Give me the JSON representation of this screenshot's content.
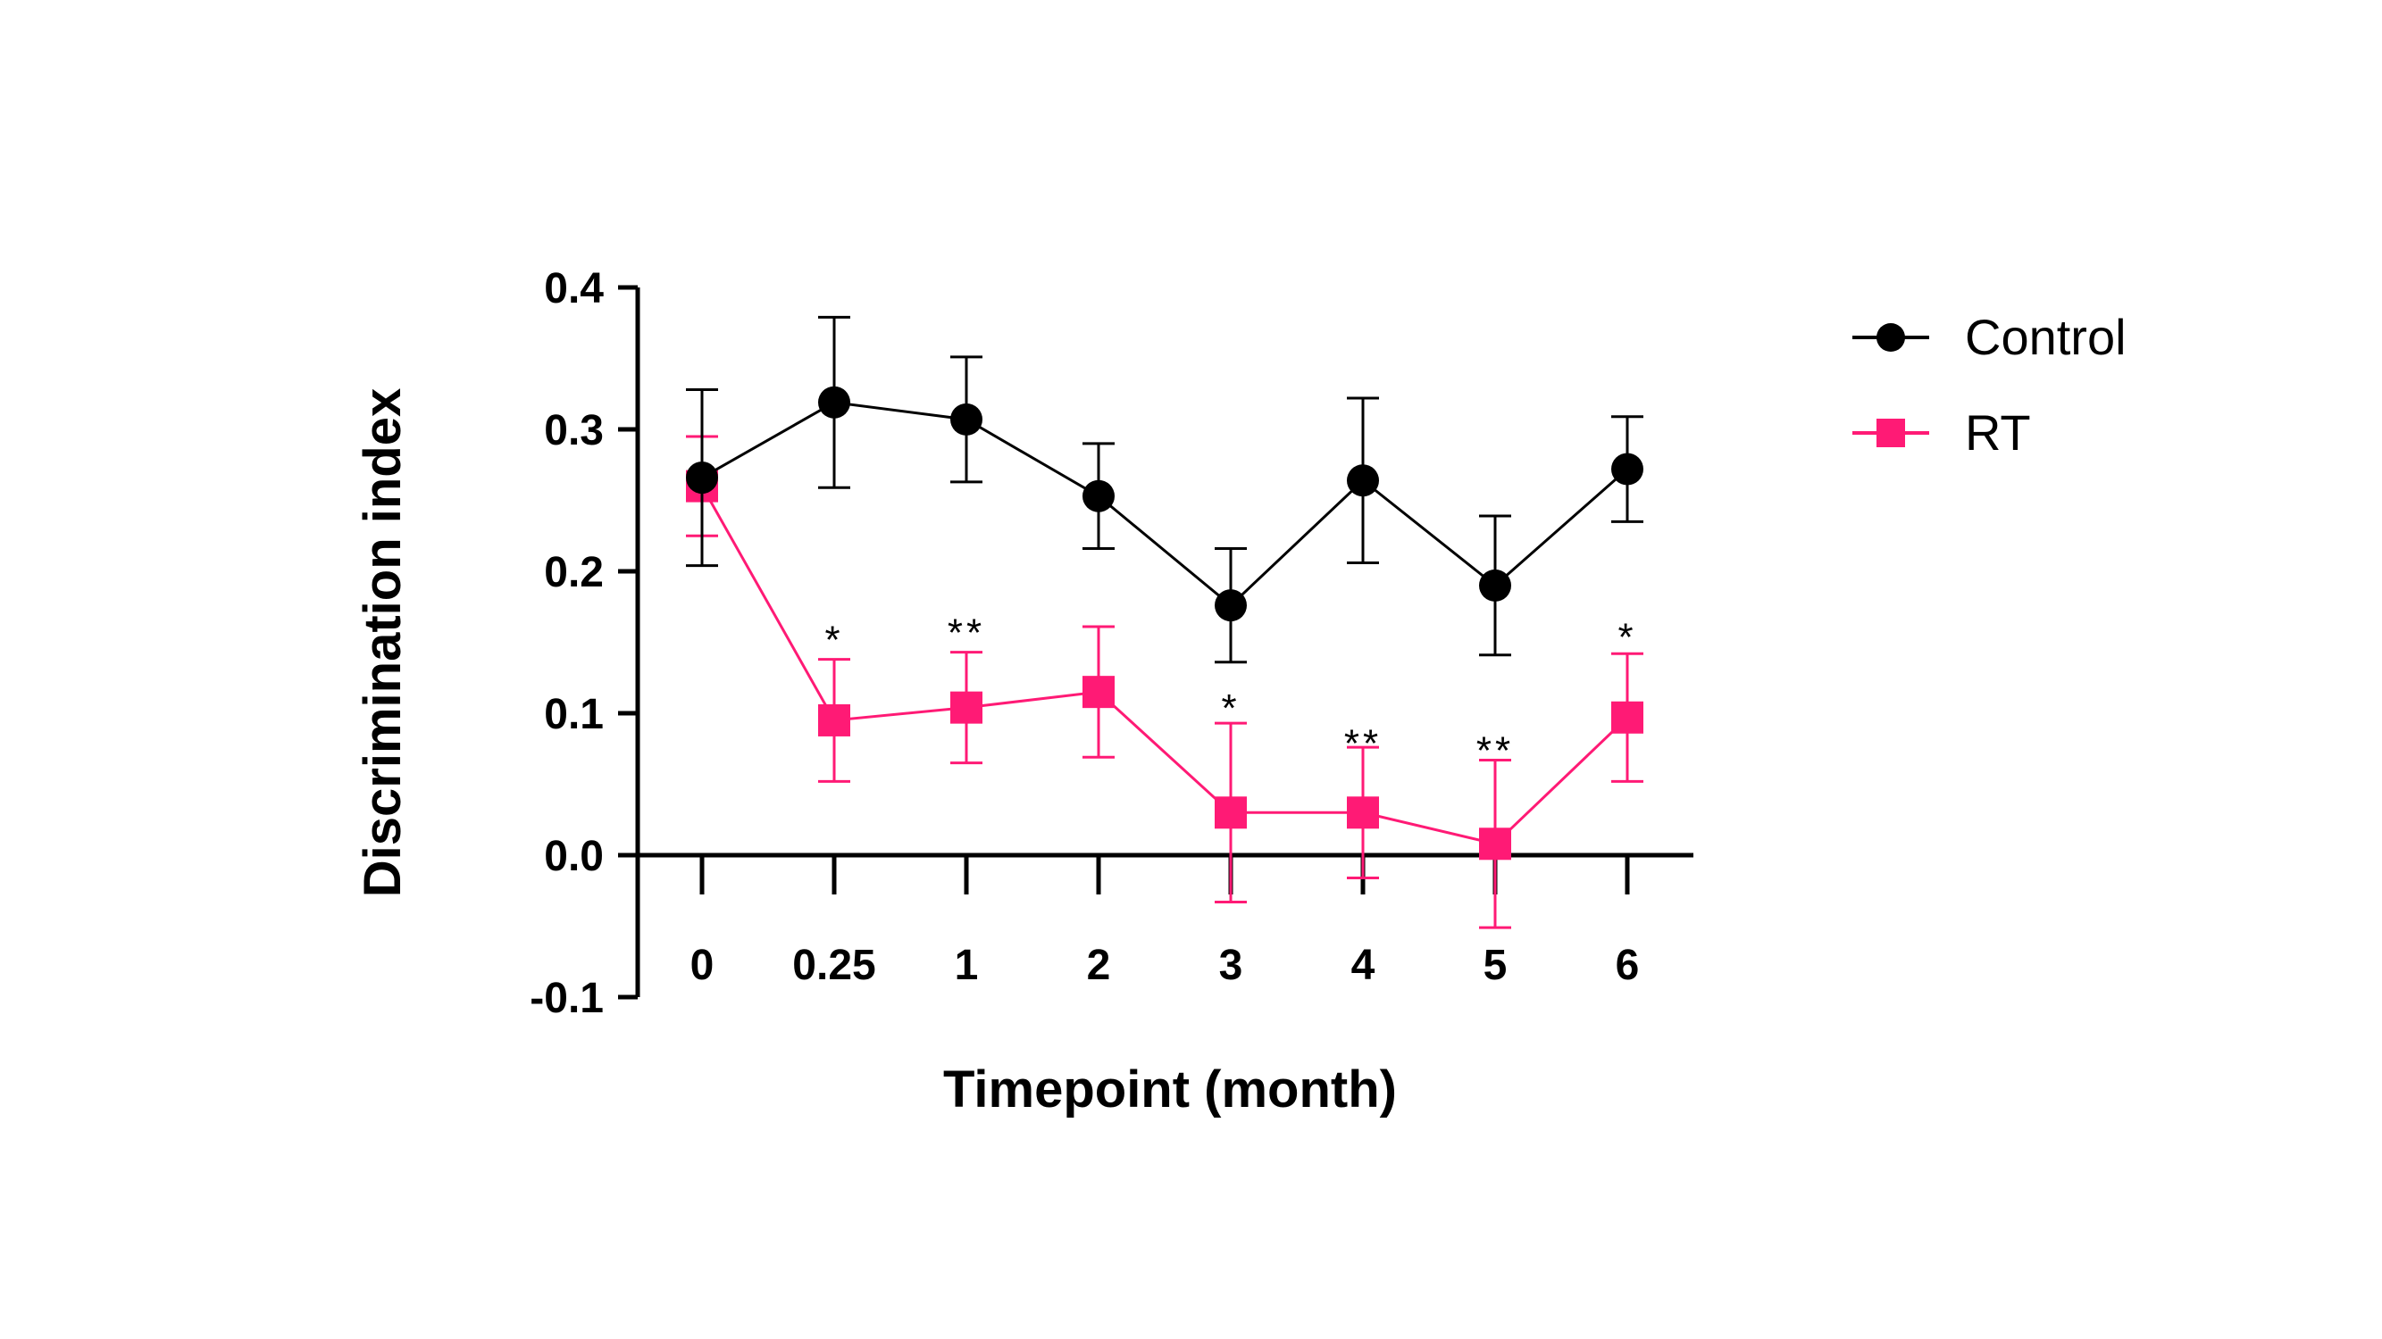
{
  "chart_data": {
    "type": "line",
    "title": "",
    "xlabel": "Timepoint (month)",
    "ylabel": "Discrimination index",
    "categories": [
      "0",
      "0.25",
      "1",
      "2",
      "3",
      "4",
      "5",
      "6"
    ],
    "ylim": [
      -0.1,
      0.4
    ],
    "yticks": [
      -0.1,
      0.0,
      0.1,
      0.2,
      0.3,
      0.4
    ],
    "ytick_labels": [
      "-0.1",
      "0.0",
      "0.1",
      "0.2",
      "0.3",
      "0.4"
    ],
    "legend_position": "top-right",
    "series": [
      {
        "name": "Control",
        "color": "#000000",
        "marker": "circle",
        "values": [
          0.266,
          0.319,
          0.307,
          0.253,
          0.176,
          0.264,
          0.19,
          0.272
        ],
        "error": [
          0.062,
          0.06,
          0.044,
          0.037,
          0.04,
          0.058,
          0.049,
          0.037
        ]
      },
      {
        "name": "RT",
        "color": "#ff1a75",
        "marker": "square",
        "values": [
          0.26,
          0.095,
          0.104,
          0.115,
          0.03,
          0.03,
          0.008,
          0.097
        ],
        "error": [
          0.035,
          0.043,
          0.039,
          0.046,
          0.063,
          0.046,
          0.059,
          0.045
        ]
      }
    ],
    "annotations": [
      {
        "category": "0.25",
        "text": "*",
        "y": 0.155
      },
      {
        "category": "1",
        "text": "**",
        "y": 0.16
      },
      {
        "category": "3",
        "text": "*",
        "y": 0.107
      },
      {
        "category": "4",
        "text": "**",
        "y": 0.082
      },
      {
        "category": "5",
        "text": "**",
        "y": 0.077
      },
      {
        "category": "6",
        "text": "*",
        "y": 0.157
      }
    ]
  }
}
